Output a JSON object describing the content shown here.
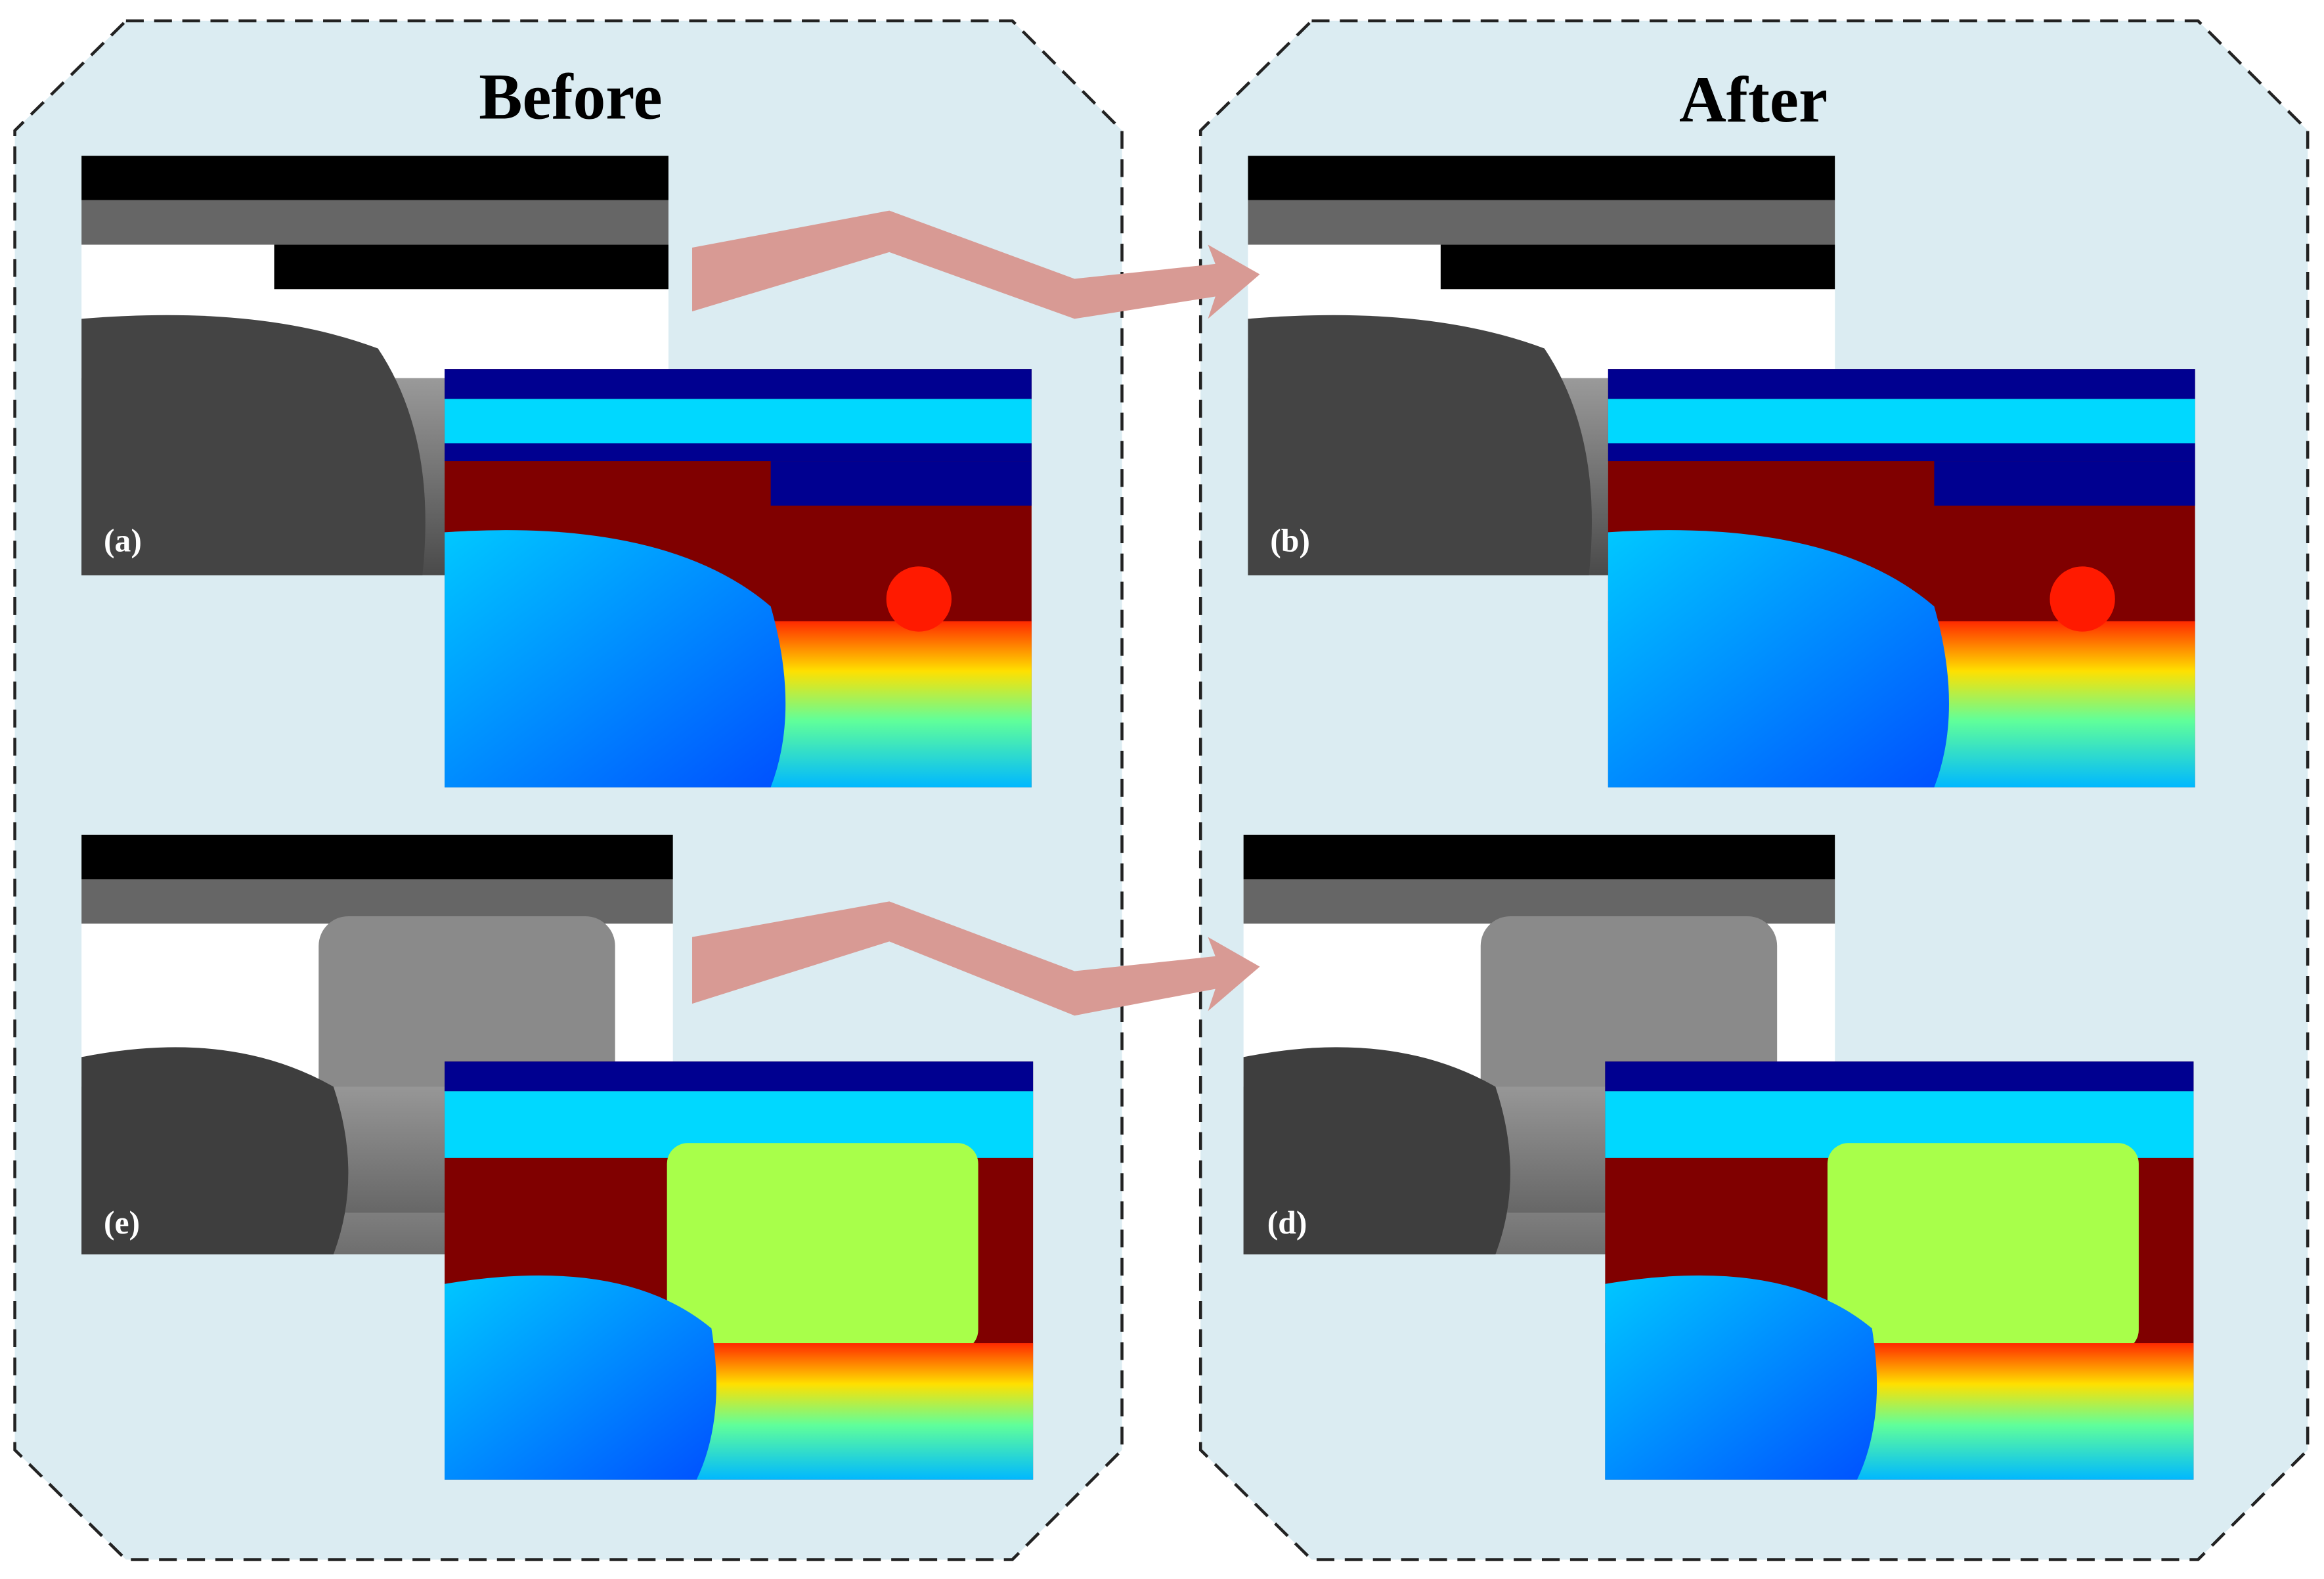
{
  "panels": [
    {
      "title": "Before",
      "labels": [
        "(a)",
        "(e)"
      ]
    },
    {
      "title": "After",
      "labels": [
        "(b)",
        "(d)"
      ]
    }
  ]
}
